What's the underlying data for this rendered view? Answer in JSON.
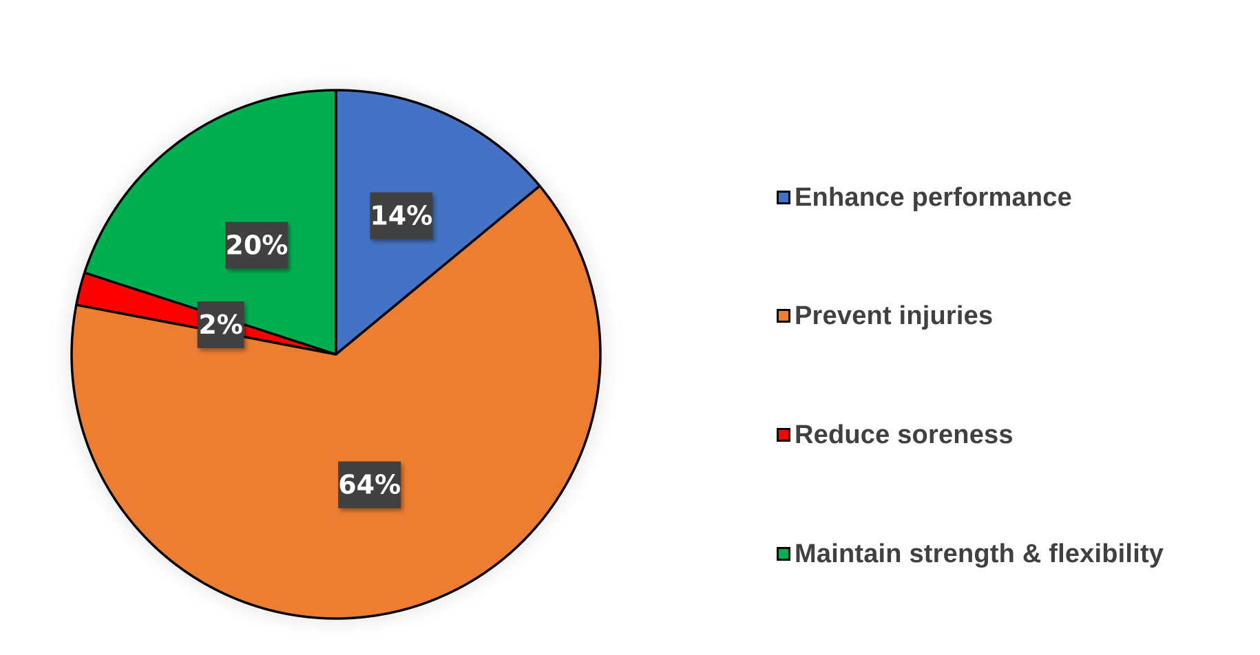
{
  "chart_data": {
    "type": "pie",
    "title": "",
    "categories": [
      "Enhance performance",
      "Prevent injuries",
      "Reduce soreness",
      "Maintain strength & flexibility"
    ],
    "values": [
      14,
      64,
      2,
      20
    ],
    "labels": [
      "14%",
      "64%",
      "2%",
      "20%"
    ],
    "colors": [
      "#4472C4",
      "#ED7D31",
      "#FF0000",
      "#00B050"
    ],
    "start_angle": "12 o'clock",
    "direction": "clockwise",
    "legend_position": "right",
    "data_label_style": "dark box, white bold text"
  },
  "legend": {
    "items": [
      {
        "label": "Enhance performance",
        "color": "#4472C4"
      },
      {
        "label": "Prevent injuries",
        "color": "#ED7D31"
      },
      {
        "label": "Reduce soreness",
        "color": "#FF0000"
      },
      {
        "label": "Maintain strength & flexibility",
        "color": "#00B050"
      }
    ]
  }
}
